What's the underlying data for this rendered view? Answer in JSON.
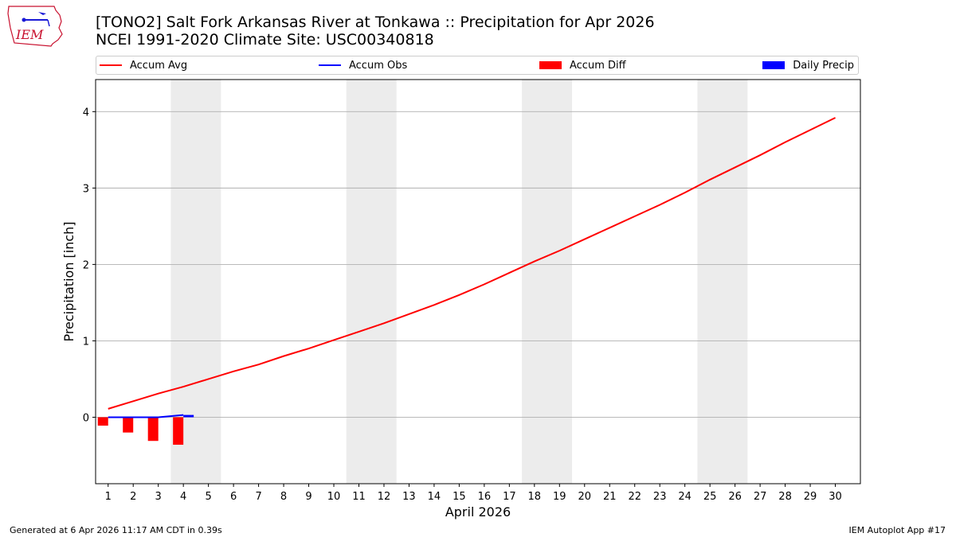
{
  "title_line1": "[TONO2] Salt Fork Arkansas River at Tonkawa :: Precipitation for Apr 2026",
  "title_line2": "NCEI 1991-2020 Climate Site: USC00340818",
  "logo_text": "IEM",
  "footer_left": "Generated at 6 Apr 2026 11:17 AM CDT in 0.39s",
  "footer_right": "IEM Autoplot App #17",
  "colors": {
    "accum_avg": "#ff0000",
    "accum_obs": "#0000ff",
    "accum_diff": "#ff0000",
    "daily_precip": "#0000ff",
    "weekend_shade": "#ececec",
    "grid": "#b0b0b0",
    "logo": "#c8102e"
  },
  "legend": [
    {
      "label": "Accum Avg",
      "kind": "line",
      "color": "#ff0000"
    },
    {
      "label": "Accum Obs",
      "kind": "line",
      "color": "#0000ff"
    },
    {
      "label": "Accum Diff",
      "kind": "box",
      "color": "#ff0000"
    },
    {
      "label": "Daily Precip",
      "kind": "box",
      "color": "#0000ff"
    }
  ],
  "chart_data": {
    "type": "line",
    "xlabel": "April 2026",
    "ylabel": "Precipitation [inch]",
    "xlim": [
      0.5,
      31.0
    ],
    "ylim": [
      -0.87,
      4.42
    ],
    "x_ticks": [
      1,
      2,
      3,
      4,
      5,
      6,
      7,
      8,
      9,
      10,
      11,
      12,
      13,
      14,
      15,
      16,
      17,
      18,
      19,
      20,
      21,
      22,
      23,
      24,
      25,
      26,
      27,
      28,
      29,
      30
    ],
    "y_ticks": [
      0,
      1,
      2,
      3,
      4
    ],
    "grid": "horizontal",
    "legend_position": "top",
    "weekend_shading": [
      [
        4,
        5
      ],
      [
        11,
        12
      ],
      [
        18,
        19
      ],
      [
        25,
        26
      ]
    ],
    "series": [
      {
        "name": "Accum Avg",
        "type": "line",
        "x": [
          1,
          2,
          3,
          4,
          5,
          6,
          7,
          8,
          9,
          10,
          11,
          12,
          13,
          14,
          15,
          16,
          17,
          18,
          19,
          20,
          21,
          22,
          23,
          24,
          25,
          26,
          27,
          28,
          29,
          30
        ],
        "values": [
          0.11,
          0.21,
          0.31,
          0.4,
          0.5,
          0.6,
          0.69,
          0.8,
          0.9,
          1.01,
          1.12,
          1.23,
          1.35,
          1.47,
          1.6,
          1.74,
          1.89,
          2.04,
          2.18,
          2.33,
          2.48,
          2.63,
          2.78,
          2.94,
          3.11,
          3.27,
          3.43,
          3.6,
          3.76,
          3.92
        ]
      },
      {
        "name": "Accum Obs",
        "type": "line",
        "x": [
          1,
          2,
          3,
          4
        ],
        "values": [
          0.0,
          0.0,
          0.0,
          0.03
        ]
      },
      {
        "name": "Accum Diff",
        "type": "bar",
        "x": [
          1,
          2,
          3,
          4
        ],
        "values": [
          -0.11,
          -0.2,
          -0.31,
          -0.36
        ]
      },
      {
        "name": "Daily Precip",
        "type": "bar",
        "x": [
          1,
          2,
          3,
          4
        ],
        "values": [
          0.0,
          0.01,
          0.0,
          0.03
        ]
      }
    ]
  }
}
